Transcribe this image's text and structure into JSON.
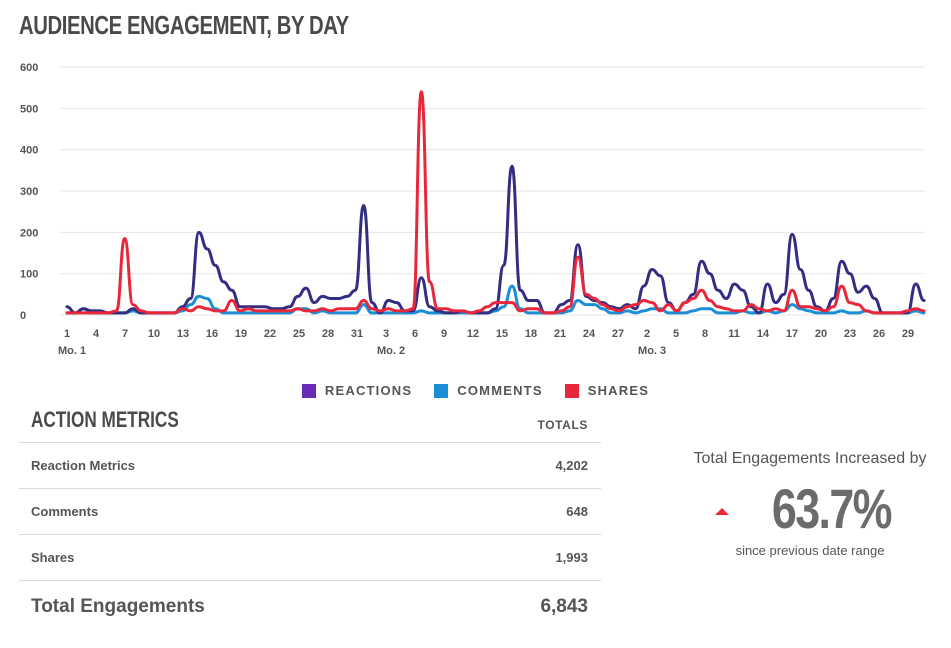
{
  "header": {
    "title": "AUDIENCE ENGAGEMENT, BY DAY"
  },
  "legend": [
    {
      "label": "REACTIONS",
      "color": "#6a2bb8"
    },
    {
      "label": "COMMENTS",
      "color": "#1b8fd6"
    },
    {
      "label": "SHARES",
      "color": "#e8283a"
    }
  ],
  "metrics": {
    "title": "ACTION METRICS",
    "totals_label": "TOTALS",
    "rows": [
      {
        "label": "Reaction Metrics",
        "value": "4,202"
      },
      {
        "label": "Comments",
        "value": "648"
      },
      {
        "label": "Shares",
        "value": "1,993"
      }
    ],
    "total": {
      "label": "Total Engagements",
      "value": "6,843"
    }
  },
  "summary": {
    "headline": "Total Engagements Increased by",
    "value": "63.7%",
    "caption": "since previous date range"
  },
  "chart_data": {
    "type": "line",
    "title": "AUDIENCE ENGAGEMENT, BY DAY",
    "ylim": [
      0,
      600
    ],
    "yticks": [
      0,
      100,
      200,
      300,
      400,
      500,
      600
    ],
    "xtick_labels": [
      "1",
      "4",
      "7",
      "10",
      "13",
      "16",
      "19",
      "22",
      "25",
      "28",
      "31",
      "3",
      "6",
      "9",
      "12",
      "15",
      "18",
      "21",
      "24",
      "27",
      "2",
      "5",
      "8",
      "11",
      "14",
      "17",
      "20",
      "23",
      "26",
      "29"
    ],
    "month_labels": [
      "Mo. 1",
      "Mo. 2",
      "Mo. 3"
    ],
    "grid": true,
    "legend_position": "bottom",
    "series": [
      {
        "name": "REACTIONS",
        "color": "#342e82",
        "values": [
          20,
          5,
          15,
          10,
          10,
          5,
          5,
          5,
          15,
          5,
          5,
          5,
          5,
          5,
          20,
          40,
          200,
          160,
          120,
          80,
          60,
          20,
          20,
          20,
          20,
          15,
          15,
          20,
          45,
          65,
          30,
          45,
          40,
          40,
          45,
          60,
          265,
          30,
          5,
          35,
          30,
          10,
          10,
          90,
          20,
          10,
          5,
          5,
          10,
          5,
          5,
          5,
          15,
          120,
          360,
          60,
          35,
          35,
          5,
          5,
          25,
          35,
          170,
          45,
          35,
          30,
          20,
          15,
          25,
          15,
          70,
          110,
          95,
          30,
          10,
          30,
          50,
          130,
          100,
          60,
          40,
          75,
          60,
          20,
          5,
          75,
          30,
          50,
          195,
          110,
          60,
          20,
          10,
          40,
          130,
          100,
          55,
          70,
          40,
          5,
          5,
          5,
          5,
          75,
          35
        ]
      },
      {
        "name": "COMMENTS",
        "color": "#1b8fd6",
        "values": [
          5,
          5,
          15,
          5,
          5,
          5,
          5,
          5,
          10,
          5,
          5,
          5,
          5,
          5,
          10,
          25,
          45,
          40,
          15,
          5,
          5,
          5,
          5,
          5,
          5,
          5,
          5,
          5,
          15,
          15,
          5,
          10,
          5,
          5,
          5,
          5,
          25,
          5,
          5,
          5,
          5,
          5,
          5,
          10,
          5,
          5,
          5,
          5,
          5,
          5,
          5,
          5,
          10,
          20,
          70,
          15,
          5,
          5,
          5,
          5,
          5,
          10,
          35,
          25,
          25,
          15,
          5,
          5,
          10,
          5,
          10,
          15,
          15,
          5,
          5,
          5,
          10,
          15,
          15,
          5,
          5,
          5,
          10,
          5,
          5,
          10,
          5,
          10,
          25,
          15,
          10,
          5,
          5,
          5,
          10,
          5,
          5,
          10,
          5,
          5,
          5,
          5,
          5,
          10,
          5
        ]
      },
      {
        "name": "SHARES",
        "color": "#e8283a",
        "values": [
          5,
          5,
          5,
          5,
          5,
          5,
          10,
          185,
          25,
          10,
          5,
          5,
          5,
          5,
          15,
          10,
          20,
          15,
          10,
          10,
          35,
          10,
          15,
          10,
          10,
          10,
          10,
          10,
          15,
          10,
          10,
          15,
          10,
          15,
          15,
          15,
          35,
          15,
          10,
          15,
          10,
          10,
          15,
          540,
          80,
          15,
          15,
          10,
          10,
          5,
          10,
          20,
          30,
          30,
          30,
          10,
          15,
          15,
          5,
          5,
          10,
          20,
          140,
          50,
          40,
          25,
          15,
          10,
          20,
          25,
          35,
          30,
          10,
          25,
          10,
          30,
          40,
          60,
          35,
          20,
          15,
          10,
          10,
          25,
          15,
          10,
          15,
          10,
          60,
          20,
          20,
          15,
          10,
          20,
          70,
          30,
          25,
          10,
          5,
          5,
          5,
          5,
          10,
          15,
          10
        ]
      }
    ]
  }
}
